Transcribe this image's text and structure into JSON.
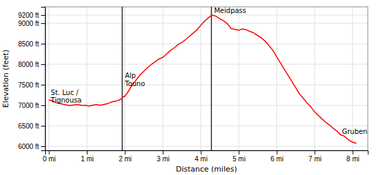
{
  "chart_data": {
    "type": "line",
    "x_label": "Distance (miles)",
    "y_label": "Elevation (feet)",
    "xlim": [
      -0.1,
      8.4
    ],
    "ylim": [
      5900,
      9400
    ],
    "xticks": [
      {
        "value": 0,
        "label": "0 mi"
      },
      {
        "value": 1,
        "label": "1 mi"
      },
      {
        "value": 2,
        "label": "2 mi"
      },
      {
        "value": 3,
        "label": "3 mi"
      },
      {
        "value": 4,
        "label": "4 mi"
      },
      {
        "value": 5,
        "label": "5 mi"
      },
      {
        "value": 6,
        "label": "6 mi"
      },
      {
        "value": 7,
        "label": "7 mi"
      },
      {
        "value": 8,
        "label": "8 mi"
      }
    ],
    "yticks": [
      {
        "value": 6000,
        "label": "6000 ft"
      },
      {
        "value": 6500,
        "label": "6500 ft"
      },
      {
        "value": 7000,
        "label": "7000 ft"
      },
      {
        "value": 7500,
        "label": "7500 ft"
      },
      {
        "value": 8000,
        "label": "8000 ft"
      },
      {
        "value": 8500,
        "label": "8500 ft"
      },
      {
        "value": 9000,
        "label": "9000 ft"
      },
      {
        "value": 9200,
        "label": "9200 ft"
      }
    ],
    "grid": true,
    "color": "#ff0000",
    "x": [
      0.0,
      0.05,
      0.1,
      0.15,
      0.2,
      0.25,
      0.3,
      0.35,
      0.4,
      0.45,
      0.5,
      0.55,
      0.6,
      0.65,
      0.7,
      0.75,
      0.8,
      0.85,
      0.9,
      0.95,
      1.0,
      1.05,
      1.1,
      1.15,
      1.2,
      1.25,
      1.3,
      1.35,
      1.4,
      1.45,
      1.5,
      1.55,
      1.6,
      1.65,
      1.7,
      1.75,
      1.8,
      1.85,
      1.9,
      1.93,
      1.95,
      2.0,
      2.05,
      2.1,
      2.15,
      2.2,
      2.25,
      2.3,
      2.35,
      2.4,
      2.5,
      2.6,
      2.7,
      2.8,
      2.9,
      3.0,
      3.1,
      3.2,
      3.3,
      3.4,
      3.5,
      3.6,
      3.7,
      3.8,
      3.9,
      4.0,
      4.1,
      4.2,
      4.28,
      4.3,
      4.35,
      4.4,
      4.5,
      4.6,
      4.7,
      4.8,
      4.9,
      5.0,
      5.1,
      5.15,
      5.2,
      5.3,
      5.4,
      5.5,
      5.6,
      5.7,
      5.8,
      5.9,
      6.0,
      6.1,
      6.2,
      6.3,
      6.4,
      6.5,
      6.6,
      6.7,
      6.8,
      6.9,
      7.0,
      7.1,
      7.2,
      7.3,
      7.4,
      7.5,
      7.6,
      7.65,
      7.7,
      7.75,
      7.8,
      7.9,
      8.0,
      8.1
    ],
    "values": [
      7130,
      7120,
      7100,
      7080,
      7060,
      7050,
      7040,
      7030,
      7020,
      7010,
      7000,
      6990,
      7000,
      7010,
      7010,
      7020,
      7010,
      7000,
      6990,
      7000,
      6990,
      6980,
      6990,
      7000,
      7010,
      7020,
      7010,
      7000,
      7010,
      7020,
      7030,
      7040,
      7060,
      7080,
      7090,
      7100,
      7110,
      7130,
      7150,
      7180,
      7200,
      7220,
      7280,
      7350,
      7430,
      7500,
      7560,
      7620,
      7680,
      7740,
      7830,
      7920,
      8000,
      8060,
      8130,
      8170,
      8250,
      8330,
      8400,
      8480,
      8530,
      8600,
      8680,
      8760,
      8840,
      8950,
      9050,
      9130,
      9190,
      9200,
      9190,
      9170,
      9110,
      9060,
      8990,
      8870,
      8850,
      8830,
      8860,
      8850,
      8840,
      8800,
      8760,
      8700,
      8640,
      8560,
      8450,
      8340,
      8180,
      8030,
      7880,
      7730,
      7580,
      7430,
      7280,
      7170,
      7060,
      6960,
      6840,
      6750,
      6660,
      6580,
      6510,
      6430,
      6360,
      6310,
      6270,
      6260,
      6230,
      6150,
      6100,
      6070
    ],
    "vertical_lines": [
      {
        "x": 1.93,
        "label": "Alp\nTouno",
        "label_y": 7430
      },
      {
        "x": 4.28,
        "label": "Meidpass",
        "label_y": 9210
      }
    ],
    "annotations": [
      {
        "text": "St. Luc /\nTignousa",
        "x": 0.05,
        "y": 7400
      },
      {
        "text": "Gruben",
        "x": 7.72,
        "y": 6450
      }
    ]
  }
}
